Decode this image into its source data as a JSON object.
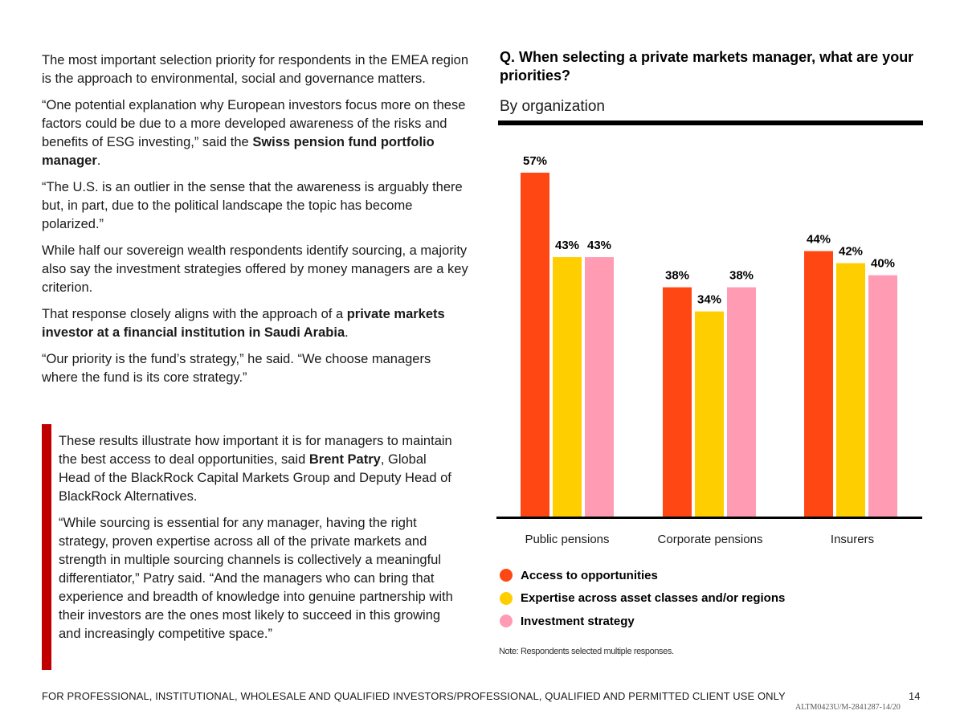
{
  "left": {
    "p1": "The most important selection priority for respondents in the EMEA region is the approach to environmental, social and governance matters.",
    "p2_pre": "“One potential explanation why European investors focus more on these factors could be due to a more developed awareness of the risks and benefits of ESG investing,” said the ",
    "p2_bold": "Swiss pension fund portfolio manager",
    "p2_post": ".",
    "p3": "“The U.S. is an outlier in the sense that the awareness is arguably there but, in part, due to the political landscape the topic has become polarized.”",
    "p4": "While half our sovereign wealth respondents identify sourcing, a majority also say the investment strategies offered by money managers are a key criterion.",
    "p5_pre": "That response closely aligns with the approach of a ",
    "p5_bold": "private markets investor at a financial institution in Saudi Arabia",
    "p5_post": ".",
    "p6": "“Our priority is the fund’s strategy,” he said. “We choose managers where the fund is its core strategy.”"
  },
  "quote": {
    "q1_pre": "These results illustrate how important it is for managers to maintain the best access to deal opportunities, said ",
    "q1_bold": "Brent Patry",
    "q1_post": ", Global Head of the BlackRock Capital Markets Group and Deputy Head of BlackRock Alternatives.",
    "q2": "“While sourcing is essential for any manager, having the right strategy, proven expertise across all of the private markets and strength in multiple sourcing channels is collectively a meaningful differentiator,” Patry said. “And the managers who can bring that experience and breadth of knowledge into genuine partnership with their investors are the ones most likely to succeed in this growing and increasingly competitive space.”"
  },
  "chart_data": {
    "type": "bar",
    "title": "Q. When selecting a private markets manager, what are your priorities?",
    "subtitle": "By organization",
    "categories": [
      "Public pensions",
      "Corporate pensions",
      "Insurers"
    ],
    "series": [
      {
        "name": "Access to opportunities",
        "values": [
          57,
          38,
          44
        ],
        "color": "#ff4713"
      },
      {
        "name": "Expertise across asset classes and/or regions",
        "values": [
          43,
          34,
          42
        ],
        "color": "#ffce00"
      },
      {
        "name": "Investment strategy",
        "values": [
          43,
          38,
          40
        ],
        "color": "#ff9bb3"
      }
    ],
    "value_suffix": "%",
    "ylim": [
      0,
      60
    ],
    "grid": false,
    "legend_position": "bottom-left"
  },
  "note": "Note: Respondents selected multiple responses.",
  "footer": {
    "disclaimer": "FOR PROFESSIONAL, INSTITUTIONAL, WHOLESALE AND QUALIFIED INVESTORS/PROFESSIONAL, QUALIFIED AND PERMITTED CLIENT USE ONLY",
    "page": "14",
    "ref": "ALTM0423U/M-2841287-14/20"
  }
}
